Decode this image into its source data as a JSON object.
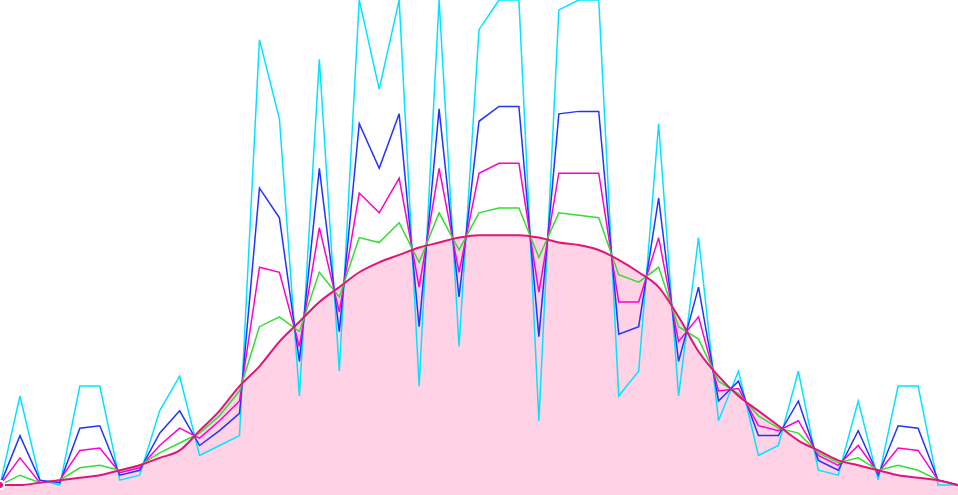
{
  "chart_data": {
    "type": "line",
    "x": [
      0,
      1,
      2,
      3,
      4,
      5,
      6,
      7,
      8,
      9,
      10,
      11,
      12,
      13,
      14,
      15,
      16,
      17,
      18,
      19,
      20,
      21,
      22,
      23,
      24,
      25,
      26,
      27,
      28,
      29,
      30,
      31,
      32,
      33,
      34,
      35,
      36,
      37,
      38,
      39,
      40,
      41,
      42,
      43,
      44,
      45,
      46,
      47,
      48
    ],
    "xlim": [
      0,
      48
    ],
    "ylim": [
      0,
      100
    ],
    "grid": false,
    "tick_labels": false,
    "series": [
      {
        "type": "area",
        "color": "#e0157a",
        "values": [
          2,
          2,
          2.5,
          3,
          3.5,
          4,
          5,
          6,
          7.5,
          9,
          13,
          17,
          22,
          26,
          31,
          35,
          39,
          42,
          45,
          47,
          48.5,
          50,
          51,
          52,
          52.5,
          52.5,
          52.5,
          52,
          51,
          50.5,
          49.5,
          47.5,
          45,
          42,
          36,
          29,
          24,
          20,
          17,
          14,
          11,
          9,
          7,
          6,
          5,
          4,
          3.5,
          3,
          2
        ]
      },
      {
        "type": "line",
        "color": "#00e5ff",
        "values": [
          2,
          20,
          3,
          2,
          22,
          22,
          3,
          4,
          17,
          24,
          8,
          10,
          12,
          92,
          76,
          20,
          88,
          25,
          100,
          82,
          100,
          22,
          100,
          30,
          94,
          100,
          100,
          15,
          98,
          100,
          100,
          20,
          25,
          75,
          20,
          52,
          15,
          25,
          8,
          10,
          25,
          5,
          4,
          19,
          3,
          22,
          22,
          2,
          2
        ]
      },
      {
        "type": "line",
        "color": "#2233ff",
        "values": [
          2,
          12,
          3,
          2.5,
          13.5,
          14,
          4,
          5,
          12.5,
          17,
          10,
          13,
          16.5,
          62,
          56,
          27,
          66,
          33,
          75,
          66,
          77,
          34,
          78,
          40,
          75.5,
          78.5,
          78.5,
          32,
          77,
          77.5,
          77.5,
          32.5,
          34,
          60,
          27,
          42,
          19,
          23,
          12,
          12,
          19,
          7,
          5,
          13,
          4,
          14,
          13.5,
          3,
          2
        ]
      },
      {
        "type": "line",
        "color": "#ff00cc",
        "values": [
          2,
          7.5,
          2.5,
          3,
          9,
          9.5,
          4.5,
          5.5,
          10,
          13.5,
          11.5,
          15,
          19,
          46,
          45,
          30,
          54,
          37,
          61,
          57,
          64,
          42,
          66,
          45,
          65,
          67,
          67,
          41,
          65,
          65,
          65,
          39,
          39,
          52,
          31,
          36,
          21,
          21.5,
          14,
          13,
          15,
          8,
          6,
          10,
          4.5,
          9.5,
          9,
          3,
          2
        ]
      },
      {
        "type": "line",
        "color": "#33dd33",
        "values": [
          2,
          4,
          2.5,
          3,
          5.5,
          6,
          5,
          6,
          8.5,
          10.5,
          12.5,
          16,
          21,
          34,
          36,
          33,
          45,
          40,
          52,
          51,
          55,
          47,
          57,
          49.5,
          57,
          58,
          58,
          48,
          57,
          56.5,
          56,
          44.5,
          43,
          46,
          34,
          31.5,
          23,
          20.5,
          16,
          13.5,
          12.5,
          8.5,
          6.5,
          7.5,
          5,
          6,
          5,
          3,
          2
        ]
      }
    ]
  }
}
